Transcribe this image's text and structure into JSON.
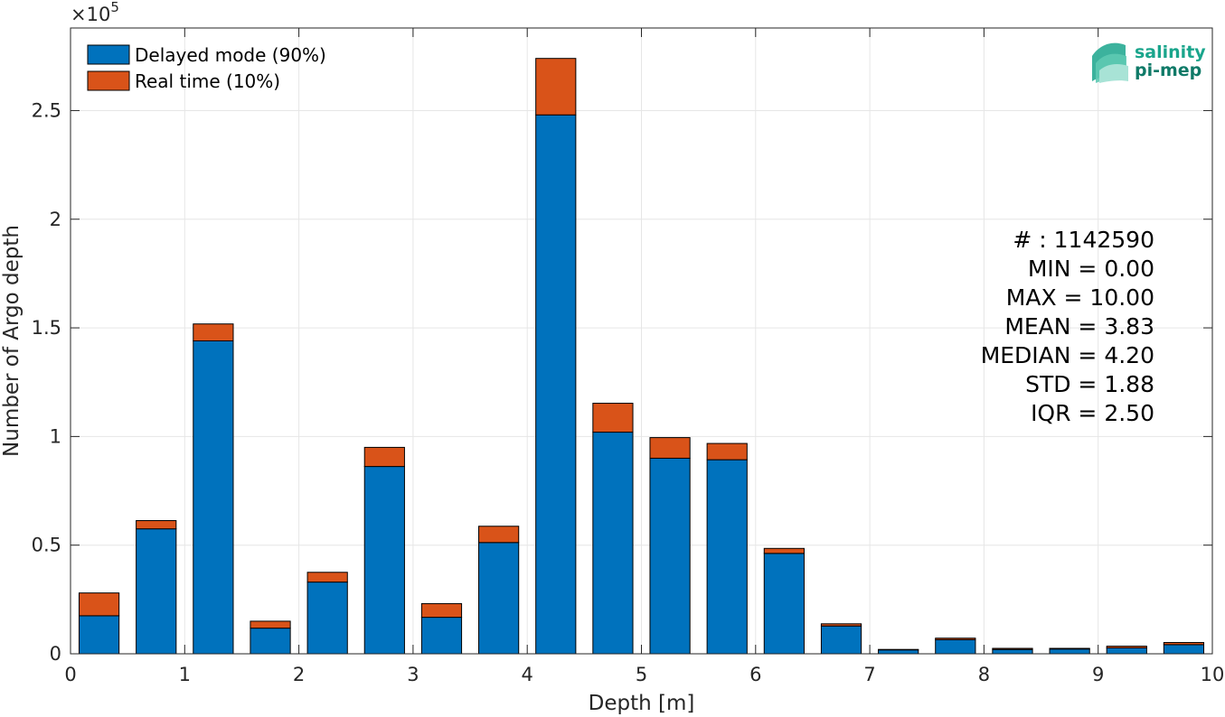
{
  "chart_data": {
    "type": "bar",
    "stacked": true,
    "xlabel": "Depth [m]",
    "ylabel": "Number of Argo depth",
    "y_multiplier_label": "×10",
    "y_multiplier_exp": "5",
    "xlim": [
      0,
      10
    ],
    "ylim": [
      0,
      2.88
    ],
    "y_unit_scale": 100000,
    "xticks": [
      "0",
      "1",
      "2",
      "3",
      "4",
      "5",
      "6",
      "7",
      "8",
      "9",
      "10"
    ],
    "yticks": [
      "0",
      "0.5",
      "1",
      "1.5",
      "2",
      "2.5"
    ],
    "grid": true,
    "legend_position": "top-left",
    "bin_width": 0.5,
    "bin_centers": [
      0.25,
      0.75,
      1.25,
      1.75,
      2.25,
      2.75,
      3.25,
      3.75,
      4.25,
      4.75,
      5.25,
      5.75,
      6.25,
      6.75,
      7.25,
      7.75,
      8.25,
      8.75,
      9.25,
      9.75
    ],
    "series": [
      {
        "name": "Delayed mode (90%)",
        "color": "#0072BD",
        "values": [
          0.175,
          0.575,
          1.44,
          0.118,
          0.33,
          0.862,
          0.168,
          0.512,
          2.48,
          1.02,
          0.9,
          0.893,
          0.462,
          0.128,
          0.018,
          0.065,
          0.02,
          0.022,
          0.027,
          0.042
        ]
      },
      {
        "name": "Real time (10%)",
        "color": "#D95319",
        "values": [
          0.105,
          0.038,
          0.078,
          0.032,
          0.045,
          0.088,
          0.063,
          0.075,
          0.26,
          0.133,
          0.095,
          0.075,
          0.023,
          0.01,
          0.002,
          0.007,
          0.005,
          0.003,
          0.008,
          0.01
        ]
      }
    ],
    "stats": [
      "# : 1142590",
      "MIN = 0.00",
      "MAX =  10.00",
      "MEAN = 3.83",
      "MEDIAN = 4.20",
      "STD = 1.88",
      "IQR = 2.50"
    ]
  },
  "logo": {
    "line1": "salinity",
    "line2": "pi-mep",
    "color": "#1aa58c"
  }
}
